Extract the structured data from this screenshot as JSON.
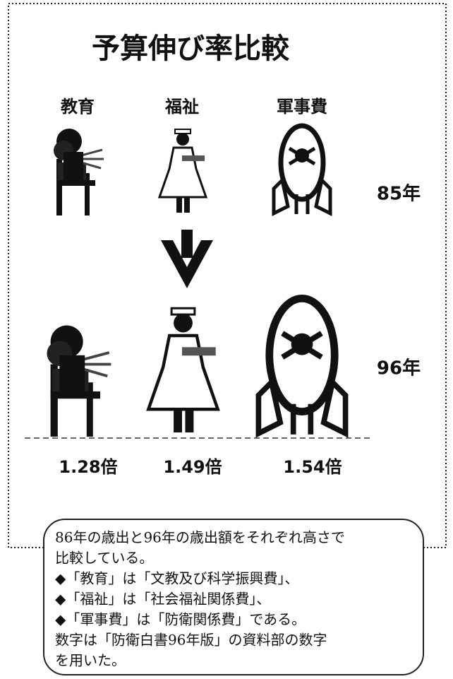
{
  "chart_data": {
    "type": "pictogram",
    "title": "予算伸び率比較",
    "categories": [
      "教育",
      "福祉",
      "軍事費"
    ],
    "row_labels": [
      "85年",
      "96年"
    ],
    "values": [
      1.28,
      1.49,
      1.54
    ],
    "value_labels": [
      "1.28倍",
      "1.49倍",
      "1.54倍"
    ]
  },
  "note": {
    "lines": [
      "86年の歳出と96年の歳出額をそれぞれ高さで",
      "比較している。",
      "◆「教育」は「文教及び科学振興費」、",
      "◆「福祉」は「社会福祉関係費」、",
      "◆「軍事費」は「防衛関係費」である。",
      "数字は「防衛白書96年版」の資料部の数字",
      "を用いた。"
    ]
  }
}
